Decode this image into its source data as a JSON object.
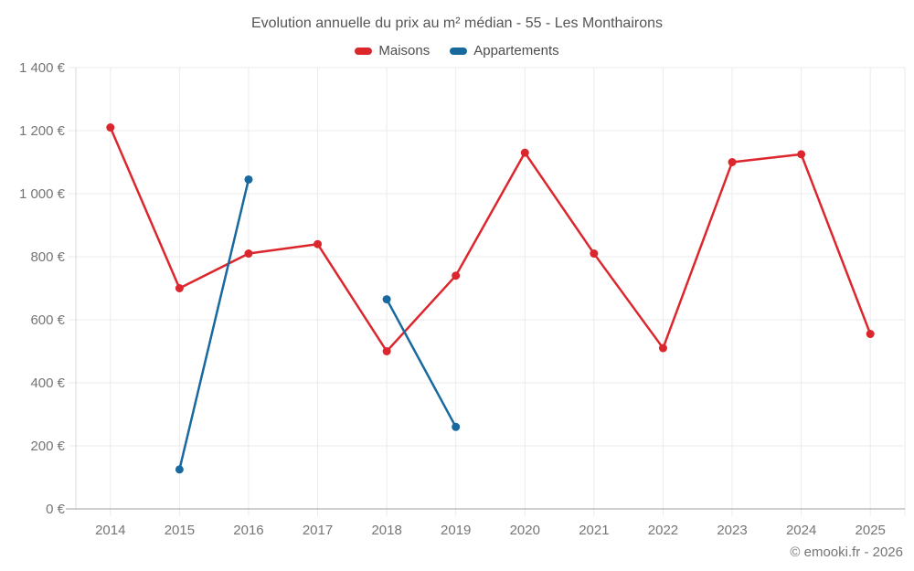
{
  "title": "Evolution annuelle du prix au m² médian - 55 - Les Monthairons",
  "footer": "© emooki.fr - 2026",
  "chart_data": {
    "type": "line",
    "categories": [
      "2014",
      "2015",
      "2016",
      "2017",
      "2018",
      "2019",
      "2020",
      "2021",
      "2022",
      "2023",
      "2024",
      "2025"
    ],
    "series": [
      {
        "name": "Maisons",
        "color": "#dc262d",
        "values": [
          1210,
          700,
          810,
          840,
          500,
          740,
          1130,
          810,
          510,
          1100,
          1125,
          555
        ]
      },
      {
        "name": "Appartements",
        "color": "#17699e",
        "values": [
          null,
          125,
          1045,
          null,
          665,
          260,
          null,
          null,
          null,
          null,
          null,
          null
        ]
      }
    ],
    "title": "Evolution annuelle du prix au m² médian - 55 - Les Monthairons",
    "xlabel": "",
    "ylabel": "",
    "ylim": [
      0,
      1400
    ],
    "y_tick_step": 200,
    "y_tick_labels": [
      "0 €",
      "200 €",
      "400 €",
      "600 €",
      "800 €",
      "1 000 €",
      "1 200 €",
      "1 400 €"
    ],
    "grid": true,
    "legend_position": "top"
  }
}
